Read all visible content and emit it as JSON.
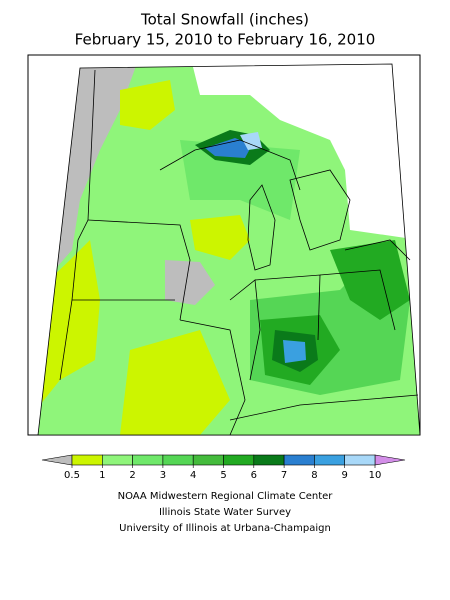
{
  "header": {
    "title": "Total Snowfall (inches)",
    "subtitle": "February 15, 2010 to February 16, 2010"
  },
  "legend": {
    "ticks": [
      0.5,
      1,
      2,
      3,
      4,
      5,
      6,
      7,
      8,
      9,
      10
    ],
    "colors": [
      "#ccf500",
      "#8ff57a",
      "#6fe86a",
      "#55d655",
      "#44bb3c",
      "#22aa22",
      "#0a7a1a",
      "#2a7fd0",
      "#3aa0e0",
      "#a8d8f8"
    ],
    "under_color": "#bdbdbd",
    "over_color": "#d38ee8"
  },
  "credits": [
    "NOAA Midwestern Regional Climate Center",
    "Illinois State Water Survey",
    "University of Illinois at Urbana-Champaign"
  ]
}
